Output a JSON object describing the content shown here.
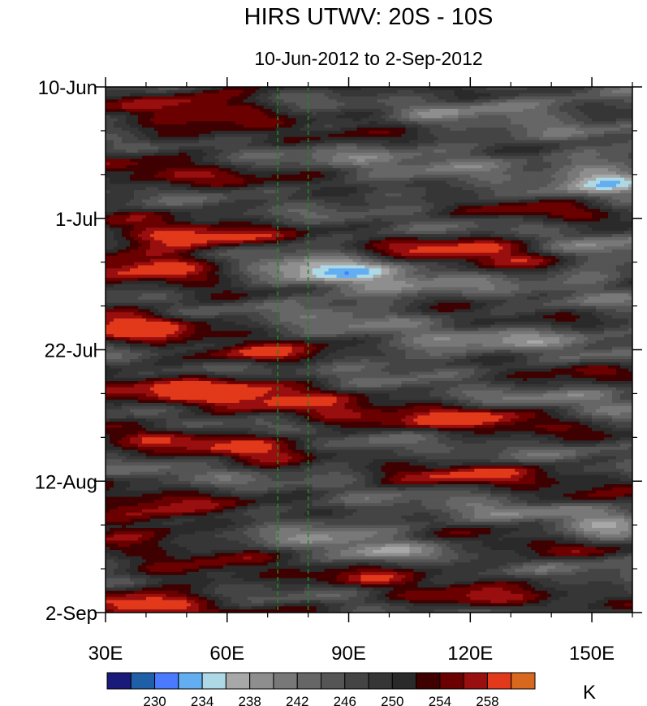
{
  "chart_data": {
    "type": "heatmap",
    "title": "HIRS UTWV: 20S - 10S",
    "subtitle": "10-Jun-2012 to 2-Sep-2012",
    "xlabel": "",
    "ylabel": "",
    "x_tick_labels": [
      "30E",
      "60E",
      "90E",
      "120E",
      "150E"
    ],
    "x_tick_values": [
      30,
      60,
      90,
      120,
      150
    ],
    "xlim": [
      30,
      160
    ],
    "y_tick_labels": [
      "10-Jun",
      "1-Jul",
      "22-Jul",
      "12-Aug",
      "2-Sep"
    ],
    "y_tick_days": [
      0,
      21,
      42,
      63,
      84
    ],
    "ylim_dates": [
      "2012-06-10",
      "2012-09-02"
    ],
    "colorbar": {
      "unit": "K",
      "tick_labels": [
        "230",
        "234",
        "238",
        "242",
        "246",
        "250",
        "254",
        "258"
      ],
      "levels": [
        228,
        230,
        232,
        234,
        236,
        238,
        240,
        242,
        244,
        246,
        248,
        250,
        252,
        254,
        256,
        258
      ],
      "colors": [
        "#1a1a7a",
        "#1f5fa8",
        "#4a7aff",
        "#62aef0",
        "#add8e6",
        "#a8a8a8",
        "#8e8e8e",
        "#787878",
        "#666666",
        "#555555",
        "#444444",
        "#363636",
        "#2a2a2a",
        "#3e0000",
        "#6b0000",
        "#990e0e",
        "#e2391b",
        "#d9681f"
      ]
    },
    "reference_lines": {
      "style": "dashed",
      "color": "#1e8a1e",
      "x_values": [
        72.5,
        80
      ]
    },
    "grid": false,
    "description": "Longitude-time Hovmoller of upper-tropospheric water vapor brightness temperature; warm (dry) bands 254-260 K alternate with cool (moist) bands 238-250 K propagating eastward."
  }
}
